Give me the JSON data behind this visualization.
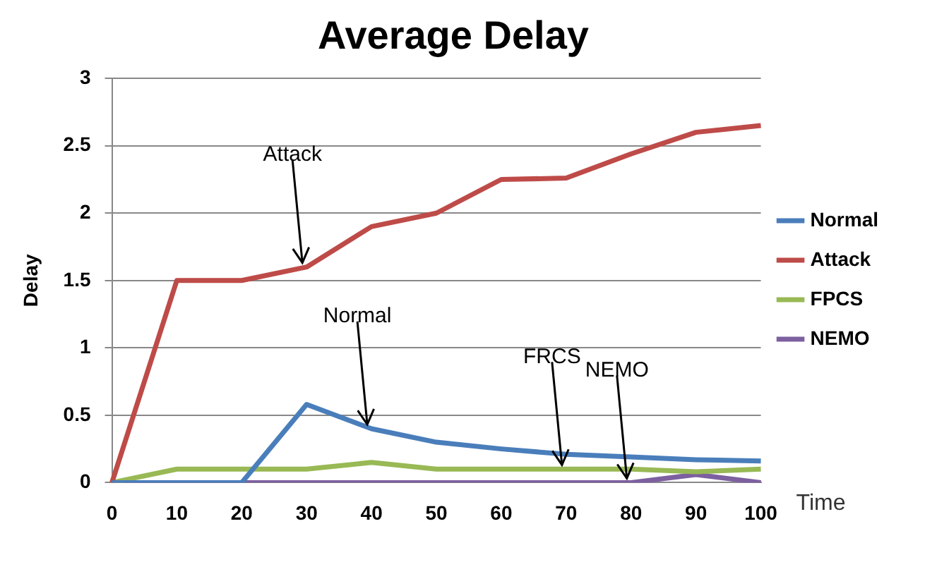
{
  "chart_data": {
    "type": "line",
    "title": "Average Delay",
    "xlabel": "Time",
    "ylabel": "Delay",
    "categories": [
      "0",
      "10",
      "20",
      "30",
      "40",
      "50",
      "60",
      "70",
      "80",
      "90",
      "100"
    ],
    "series": [
      {
        "name": "Normal",
        "color": "#4a7ebb",
        "values": [
          0,
          0,
          0,
          0.58,
          0.4,
          0.3,
          0.25,
          0.21,
          0.19,
          0.17,
          0.16
        ]
      },
      {
        "name": "Attack",
        "color": "#be4b48",
        "values": [
          0,
          1.5,
          1.5,
          1.6,
          1.9,
          2.0,
          2.25,
          2.26,
          2.44,
          2.6,
          2.65
        ]
      },
      {
        "name": "FPCS",
        "color": "#98b954",
        "values": [
          0,
          0.1,
          0.1,
          0.1,
          0.15,
          0.1,
          0.1,
          0.1,
          0.1,
          0.08,
          0.1
        ]
      },
      {
        "name": "NEMO",
        "color": "#7d60a0",
        "values": [
          0,
          0,
          0,
          0,
          0,
          0,
          0,
          0,
          0,
          0.06,
          0
        ]
      }
    ],
    "ylim": [
      0,
      3
    ],
    "yticks": [
      0,
      0.5,
      1,
      1.5,
      2,
      2.5,
      3
    ],
    "grid": "y",
    "legend": "right",
    "marker": "none",
    "line_style": "solid",
    "annotations": [
      {
        "text": "Attack",
        "x": "30",
        "y": 1.6
      },
      {
        "text": "Normal",
        "x": "40",
        "y": 0.4
      },
      {
        "text": "FRCS",
        "x": "70",
        "y": 0.1
      },
      {
        "text": "NEMO",
        "x": "80",
        "y": 0
      }
    ]
  }
}
